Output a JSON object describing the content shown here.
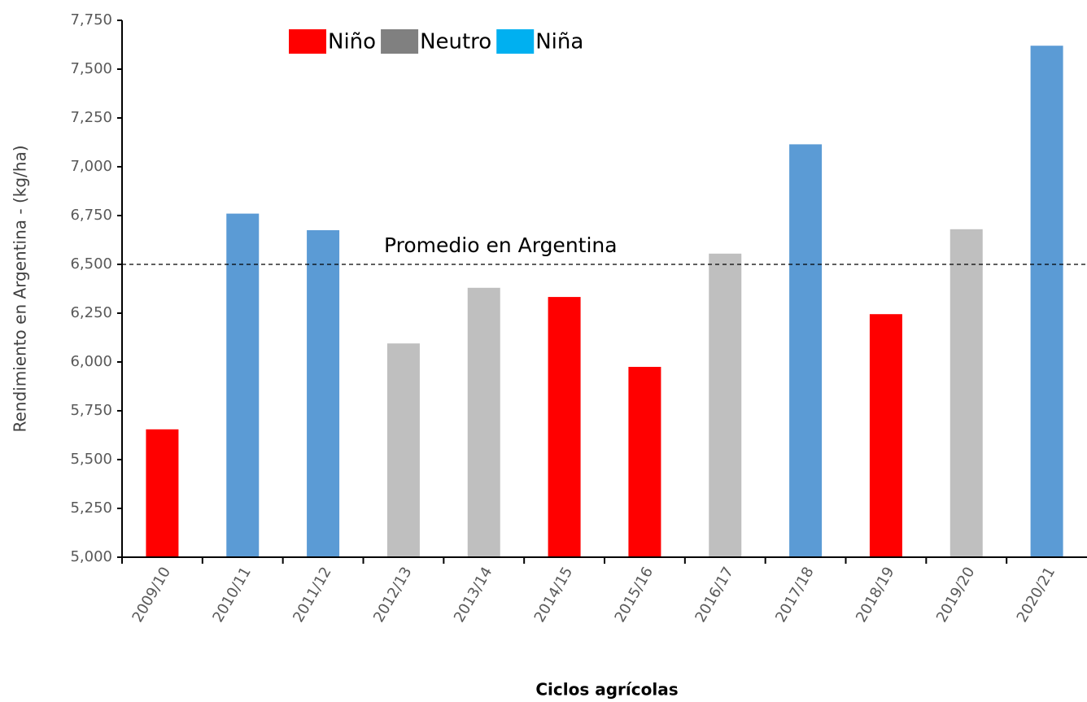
{
  "chart_data": {
    "type": "bar",
    "x_label": "Ciclos agrícolas",
    "y_label": "Rendimiento en Argentina - (kg/ha)",
    "categories": [
      "2009/10",
      "2010/11",
      "2011/12",
      "2012/13",
      "2013/14",
      "2014/15",
      "2015/16",
      "2016/17",
      "2017/18",
      "2018/19",
      "2019/20",
      "2020/21"
    ],
    "series": [
      {
        "name": "Niño",
        "color": "#ff0000",
        "legend_color": "#ff0000",
        "values": [
          5655,
          null,
          null,
          null,
          null,
          6333,
          5975,
          null,
          null,
          6245,
          null,
          null
        ]
      },
      {
        "name": "Neutro",
        "color": "#bfbfbf",
        "legend_color": "#808080",
        "values": [
          null,
          null,
          null,
          6095,
          6380,
          null,
          null,
          6555,
          null,
          null,
          6680,
          null
        ]
      },
      {
        "name": "Niña",
        "color": "#5b9bd5",
        "legend_color": "#00b0f0",
        "values": [
          null,
          6760,
          6675,
          null,
          null,
          null,
          null,
          null,
          7115,
          null,
          null,
          7620
        ]
      }
    ],
    "ylim": [
      5000,
      7750
    ],
    "yticks": [
      {
        "value": 5000,
        "label": "5,000"
      },
      {
        "value": 5250,
        "label": "5,250"
      },
      {
        "value": 5500,
        "label": "5,500"
      },
      {
        "value": 5750,
        "label": "5,750"
      },
      {
        "value": 6000,
        "label": "6,000"
      },
      {
        "value": 6250,
        "label": "6,250"
      },
      {
        "value": 6500,
        "label": "6,500"
      },
      {
        "value": 6750,
        "label": "6,750"
      },
      {
        "value": 7000,
        "label": "7,000"
      },
      {
        "value": 7250,
        "label": "7,250"
      },
      {
        "value": 7500,
        "label": "7,500"
      },
      {
        "value": 7750,
        "label": "7,750"
      }
    ],
    "reference_line": {
      "value": 6500,
      "label": "Promedio en Argentina"
    },
    "grid": false
  }
}
